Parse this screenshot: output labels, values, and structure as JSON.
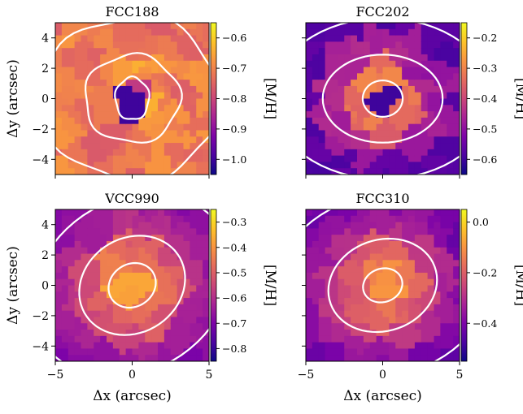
{
  "figure": {
    "shared_xlabel": "Δx (arcsec)",
    "shared_ylabel": "Δy (arcsec)"
  },
  "colors": {
    "colormap": "plasma",
    "contour": "#ffffff"
  },
  "chart_data": [
    {
      "type": "heatmap",
      "title": "FCC188",
      "xlabel": "",
      "ylabel": "Δy (arcsec)",
      "xlim": [
        -5,
        5
      ],
      "ylim": [
        -5,
        5
      ],
      "x_ticks": [
        -5,
        0,
        5
      ],
      "y_ticks": [
        -4,
        -2,
        0,
        2,
        4
      ],
      "colorbar_label": "[M/H]",
      "colorbar_range": [
        -1.05,
        -0.55
      ],
      "colorbar_ticks": [
        -0.6,
        -0.7,
        -0.8,
        -0.9,
        -1.0
      ],
      "colorbar_tick_labels": [
        "−0.6",
        "−0.7",
        "−0.8",
        "−0.9",
        "−1.0"
      ],
      "center_value": -1.0,
      "outer_value": -0.7,
      "contours": [
        [
          1.1,
          1.4
        ],
        [
          3.1,
          2.9
        ],
        [
          5.8,
          5.4
        ]
      ],
      "contour_tilt": 0
    },
    {
      "type": "heatmap",
      "title": "FCC202",
      "xlabel": "",
      "ylabel": "",
      "xlim": [
        -5,
        5
      ],
      "ylim": [
        -5,
        5
      ],
      "x_ticks": [
        -5,
        0,
        5
      ],
      "y_ticks": [
        -4,
        -2,
        0,
        2,
        4
      ],
      "colorbar_label": "[M/H]",
      "colorbar_range": [
        -0.65,
        -0.15
      ],
      "colorbar_ticks": [
        -0.2,
        -0.3,
        -0.4,
        -0.5,
        -0.6
      ],
      "colorbar_tick_labels": [
        "−0.2",
        "−0.3",
        "−0.4",
        "−0.5",
        "−0.6"
      ],
      "center_value": -0.6,
      "outer_value": -0.55,
      "contours": [
        [
          1.3,
          1.2
        ],
        [
          3.9,
          2.9
        ],
        [
          7.2,
          5.3
        ]
      ],
      "contour_tilt": 0
    },
    {
      "type": "heatmap",
      "title": "VCC990",
      "xlabel": "Δx (arcsec)",
      "ylabel": "Δy (arcsec)",
      "xlim": [
        -5,
        5
      ],
      "ylim": [
        -5,
        5
      ],
      "x_ticks": [
        -5,
        0,
        5
      ],
      "y_ticks": [
        -4,
        -2,
        0,
        2,
        4
      ],
      "colorbar_label": "[M/H]",
      "colorbar_range": [
        -0.85,
        -0.25
      ],
      "colorbar_ticks": [
        -0.3,
        -0.4,
        -0.5,
        -0.6,
        -0.7,
        -0.8
      ],
      "colorbar_tick_labels": [
        "−0.3",
        "−0.4",
        "−0.5",
        "−0.6",
        "−0.7",
        "−0.8"
      ],
      "center_value": -0.28,
      "outer_value": -0.68,
      "contours": [
        [
          1.6,
          1.4
        ],
        [
          3.6,
          3.1
        ],
        [
          6.9,
          5.6
        ]
      ],
      "contour_tilt": 35
    },
    {
      "type": "heatmap",
      "title": "FCC310",
      "xlabel": "Δx (arcsec)",
      "ylabel": "",
      "xlim": [
        -5,
        5
      ],
      "ylim": [
        -5,
        5
      ],
      "x_ticks": [
        -5,
        0,
        5
      ],
      "y_ticks": [
        -4,
        -2,
        0,
        2,
        4
      ],
      "colorbar_label": "[M/H]",
      "colorbar_range": [
        -0.55,
        0.05
      ],
      "colorbar_ticks": [
        0.0,
        -0.2,
        -0.4
      ],
      "colorbar_tick_labels": [
        "0.0",
        "−0.2",
        "−0.4"
      ],
      "center_value": 0.02,
      "outer_value": -0.42,
      "contours": [
        [
          1.3,
          1.1
        ],
        [
          3.6,
          3.0
        ],
        [
          7.5,
          6.0
        ]
      ],
      "contour_tilt": 20
    }
  ]
}
